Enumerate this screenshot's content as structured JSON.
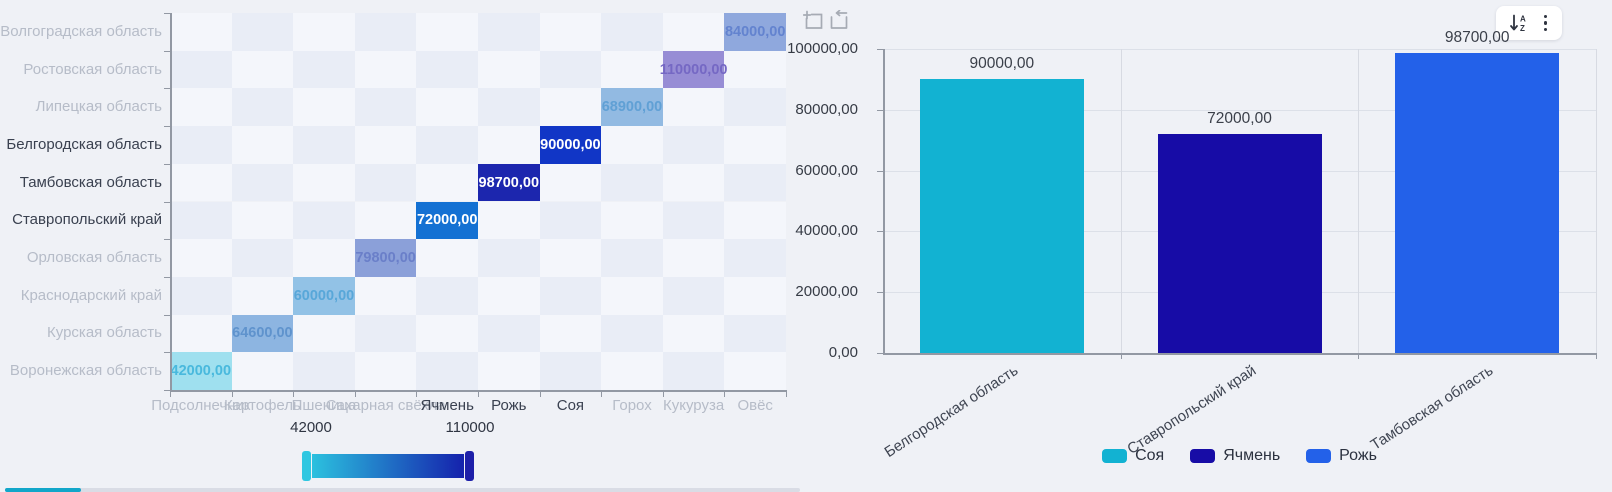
{
  "page": {
    "background": "#eff1f6"
  },
  "heatmap": {
    "regions": [
      {
        "label": "Волгоградская область",
        "active": false
      },
      {
        "label": "Ростовская область",
        "active": false
      },
      {
        "label": "Липецкая область",
        "active": false
      },
      {
        "label": "Белгородская область",
        "active": true
      },
      {
        "label": "Тамбовская область",
        "active": true
      },
      {
        "label": "Ставропольский край",
        "active": true
      },
      {
        "label": "Орловская область",
        "active": false
      },
      {
        "label": "Краснодарский край",
        "active": false
      },
      {
        "label": "Курская область",
        "active": false
      },
      {
        "label": "Воронежская область",
        "active": false
      }
    ],
    "crops": [
      {
        "label": "Подсолнечник",
        "active": false
      },
      {
        "label": "Картофель",
        "active": false
      },
      {
        "label": "Пшеница",
        "active": false
      },
      {
        "label": "Сахарная свёкла",
        "active": false
      },
      {
        "label": "Ячмень",
        "active": true
      },
      {
        "label": "Рожь",
        "active": true
      },
      {
        "label": "Соя",
        "active": true
      },
      {
        "label": "Горох",
        "active": false
      },
      {
        "label": "Кукуруза",
        "active": false
      },
      {
        "label": "Овёс",
        "active": false
      }
    ],
    "cells": [
      {
        "row": 9,
        "col": 0,
        "label": "42000,00",
        "value": 42000,
        "fill": "#9fe0ef",
        "text": "#49b9dd",
        "selected": false
      },
      {
        "row": 8,
        "col": 1,
        "label": "64600,00",
        "value": 64600,
        "fill": "#8db5e1",
        "text": "#5f93cd",
        "selected": false
      },
      {
        "row": 7,
        "col": 2,
        "label": "60000,00",
        "value": 60000,
        "fill": "#92c2e6",
        "text": "#58a7d9",
        "selected": false
      },
      {
        "row": 6,
        "col": 3,
        "label": "79800,00",
        "value": 79800,
        "fill": "#8ba0d9",
        "text": "#6a7fc9",
        "selected": false
      },
      {
        "row": 5,
        "col": 4,
        "label": "72000,00",
        "value": 72000,
        "fill": "#1471d3",
        "text": "#ffffff",
        "selected": true
      },
      {
        "row": 4,
        "col": 5,
        "label": "98700,00",
        "value": 98700,
        "fill": "#1c26ae",
        "text": "#ffffff",
        "selected": true
      },
      {
        "row": 3,
        "col": 6,
        "label": "90000,00",
        "value": 90000,
        "fill": "#1136c6",
        "text": "#ffffff",
        "selected": true
      },
      {
        "row": 2,
        "col": 7,
        "label": "68900,00",
        "value": 68900,
        "fill": "#92bae2",
        "text": "#60a0d5",
        "selected": false
      },
      {
        "row": 1,
        "col": 8,
        "label": "110000,00",
        "value": 110000,
        "fill": "#978dd5",
        "text": "#7568c4",
        "selected": false
      },
      {
        "row": 0,
        "col": 9,
        "label": "84000,00",
        "value": 84000,
        "fill": "#8fa8dd",
        "text": "#6383cf",
        "selected": false
      }
    ],
    "visual_map": {
      "min_label": "42000",
      "max_label": "110000",
      "gradient_start": "#2cc5e0",
      "gradient_end": "#141dab",
      "handle_left_color": "#2fc7e1",
      "handle_right_color": "#1d1fa9"
    },
    "label_colors": {
      "active": "#3a4150",
      "inactive": "#b6bcc8"
    },
    "bg_colors": {
      "even": "#f4f6fb",
      "odd": "#e9edf6"
    }
  },
  "bar_chart": {
    "toolbar": [
      {
        "icon": "zoom-select-icon"
      },
      {
        "icon": "zoom-restore-icon"
      }
    ],
    "menu": [
      {
        "icon": "sort-az-icon"
      },
      {
        "icon": "kebab-menu-icon"
      }
    ],
    "y_ticks": [
      {
        "label": "100000,00",
        "value": 100000
      },
      {
        "label": "80000,00",
        "value": 80000
      },
      {
        "label": "60000,00",
        "value": 60000
      },
      {
        "label": "40000,00",
        "value": 40000
      },
      {
        "label": "20000,00",
        "value": 20000
      },
      {
        "label": "0,00",
        "value": 0
      }
    ],
    "axis_max": 100000,
    "bars": [
      {
        "category": "Белгородская область",
        "series": "Соя",
        "label": "90000,00",
        "value": 90000,
        "color": "#12b2d2"
      },
      {
        "category": "Ставропольский край",
        "series": "Ячмень",
        "label": "72000,00",
        "value": 72000,
        "color": "#170ca6"
      },
      {
        "category": "Тамбовская область",
        "series": "Рожь",
        "label": "98700,00",
        "value": 98700,
        "color": "#2361e9"
      }
    ],
    "legend": [
      {
        "label": "Соя",
        "color": "#12b2d2"
      },
      {
        "label": "Ячмень",
        "color": "#170ca6"
      },
      {
        "label": "Рожь",
        "color": "#2361e9"
      }
    ]
  },
  "chart_data": [
    {
      "type": "heatmap",
      "title": "",
      "x_categories": [
        "Подсолнечник",
        "Картофель",
        "Пшеница",
        "Сахарная свёкла",
        "Ячмень",
        "Рожь",
        "Соя",
        "Горох",
        "Кукуруза",
        "Овёс"
      ],
      "y_categories": [
        "Воронежская область",
        "Курская область",
        "Краснодарский край",
        "Орловская область",
        "Ставропольский край",
        "Тамбовская область",
        "Белгородская область",
        "Липецкая область",
        "Ростовская область",
        "Волгоградская область"
      ],
      "points": [
        {
          "x": "Подсолнечник",
          "y": "Воронежская область",
          "value": 42000
        },
        {
          "x": "Картофель",
          "y": "Курская область",
          "value": 64600
        },
        {
          "x": "Пшеница",
          "y": "Краснодарский край",
          "value": 60000
        },
        {
          "x": "Сахарная свёкла",
          "y": "Орловская область",
          "value": 79800
        },
        {
          "x": "Ячмень",
          "y": "Ставропольский край",
          "value": 72000
        },
        {
          "x": "Рожь",
          "y": "Тамбовская область",
          "value": 98700
        },
        {
          "x": "Соя",
          "y": "Белгородская область",
          "value": 90000
        },
        {
          "x": "Горох",
          "y": "Липецкая область",
          "value": 68900
        },
        {
          "x": "Кукуруза",
          "y": "Ростовская область",
          "value": 110000
        },
        {
          "x": "Овёс",
          "y": "Волгоградская область",
          "value": 84000
        }
      ],
      "visual_map_range": [
        42000,
        110000
      ],
      "legend_position": "bottom",
      "selected": {
        "x": [
          "Ячмень",
          "Рожь",
          "Соя"
        ],
        "y": [
          "Белгородская область",
          "Тамбовская область",
          "Ставропольский край"
        ]
      }
    },
    {
      "type": "bar",
      "title": "",
      "categories": [
        "Белгородская область",
        "Ставропольский край",
        "Тамбовская область"
      ],
      "series": [
        {
          "name": "Соя",
          "values": [
            90000,
            null,
            null
          ]
        },
        {
          "name": "Ячмень",
          "values": [
            null,
            72000,
            null
          ]
        },
        {
          "name": "Рожь",
          "values": [
            null,
            null,
            98700
          ]
        }
      ],
      "xlabel": "",
      "ylabel": "",
      "ylim": [
        0,
        100000
      ],
      "grid": true,
      "legend_position": "bottom"
    }
  ]
}
